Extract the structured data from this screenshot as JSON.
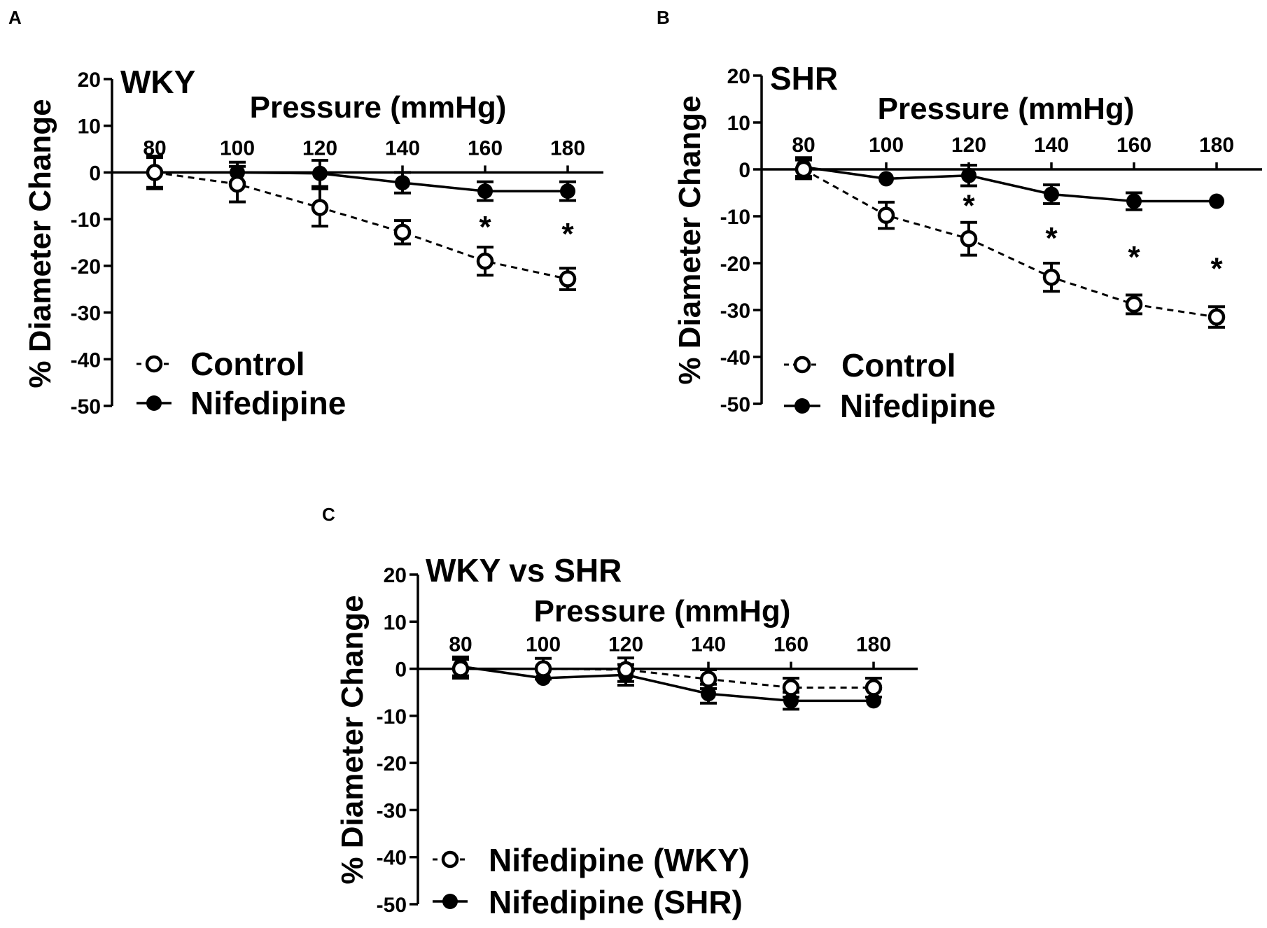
{
  "chart_data": [
    {
      "type": "line",
      "panel": "A",
      "title": "WKY",
      "xlabel": "Pressure (mmHg)",
      "ylabel": "% Diameter Change",
      "categories": [
        "80",
        "100",
        "120",
        "140",
        "160",
        "180"
      ],
      "ylim": [
        -50,
        20
      ],
      "yticks": [
        "20",
        "10",
        "0",
        "-10",
        "-20",
        "-30",
        "-40",
        "-50"
      ],
      "series": [
        {
          "name": "Control",
          "marker": "open",
          "line": "dashed",
          "values": [
            0,
            -2.5,
            -7.5,
            -12.8,
            -19,
            -22.8
          ],
          "errors": [
            3.2,
            3.8,
            4,
            2.5,
            3,
            2.3
          ]
        },
        {
          "name": "Nifedipine",
          "marker": "filled",
          "line": "solid",
          "values": [
            0,
            0,
            -0.2,
            -2.2,
            -4,
            -4
          ],
          "errors": [
            3.5,
            2.2,
            2.8,
            2.2,
            2,
            2
          ]
        }
      ],
      "significance": [
        {
          "category": "160",
          "label": "*",
          "y": -11.5
        },
        {
          "category": "180",
          "label": "*",
          "y": -13
        }
      ]
    },
    {
      "type": "line",
      "panel": "B",
      "title": "SHR",
      "xlabel": "Pressure (mmHg)",
      "ylabel": "% Diameter Change",
      "categories": [
        "80",
        "100",
        "120",
        "140",
        "160",
        "180"
      ],
      "ylim": [
        -50,
        20
      ],
      "yticks": [
        "20",
        "10",
        "0",
        "-10",
        "-20",
        "-30",
        "-40",
        "-50"
      ],
      "series": [
        {
          "name": "Control",
          "marker": "open",
          "line": "dashed",
          "values": [
            0,
            -9.8,
            -14.8,
            -23,
            -28.8,
            -31.5
          ],
          "errors": [
            2,
            2.8,
            3.5,
            3,
            2,
            2.2
          ]
        },
        {
          "name": "Nifedipine",
          "marker": "filled",
          "line": "solid",
          "values": [
            0.5,
            -2,
            -1.3,
            -5.3,
            -6.8,
            -6.8
          ],
          "errors": [
            2,
            0,
            2.2,
            2,
            1.8,
            0
          ]
        }
      ],
      "significance": [
        {
          "category": "120",
          "label": "*",
          "y": -7.5
        },
        {
          "category": "140",
          "label": "*",
          "y": -14.5
        },
        {
          "category": "160",
          "label": "*",
          "y": -18.5
        },
        {
          "category": "180",
          "label": "*",
          "y": -21
        }
      ]
    },
    {
      "type": "line",
      "panel": "C",
      "title": "WKY vs SHR",
      "xlabel": "Pressure (mmHg)",
      "ylabel": "% Diameter Change",
      "categories": [
        "80",
        "100",
        "120",
        "140",
        "160",
        "180"
      ],
      "ylim": [
        -50,
        20
      ],
      "yticks": [
        "20",
        "10",
        "0",
        "-10",
        "-20",
        "-30",
        "-40",
        "-50"
      ],
      "series": [
        {
          "name": "Nifedipine (WKY)",
          "marker": "open",
          "line": "dashed",
          "values": [
            0,
            0,
            -0.2,
            -2.2,
            -4,
            -4
          ],
          "errors": [
            2,
            2.2,
            2.5,
            2,
            2,
            2
          ]
        },
        {
          "name": "Nifedipine (SHR)",
          "marker": "filled",
          "line": "solid",
          "values": [
            0.5,
            -2,
            -1.3,
            -5.3,
            -6.8,
            -6.8
          ],
          "errors": [
            2,
            0,
            2.2,
            2,
            1.8,
            0
          ]
        }
      ],
      "significance": []
    }
  ]
}
